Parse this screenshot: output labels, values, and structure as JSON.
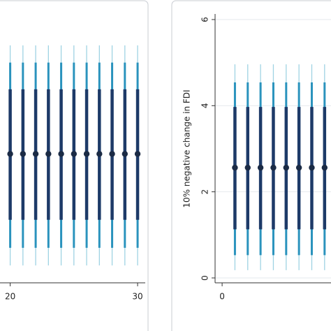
{
  "chart_data": [
    {
      "type": "errorbar",
      "x": [
        20,
        21,
        22,
        23,
        24,
        25,
        26,
        27,
        28,
        29,
        30
      ],
      "values": [
        2.88,
        2.88,
        2.88,
        2.88,
        2.88,
        2.88,
        2.88,
        2.88,
        2.88,
        2.88,
        2.88
      ],
      "point_color": "#1b2b45",
      "intervals": [
        {
          "color": "#9fd3e3",
          "lower": [
            0.29,
            0.29,
            0.29,
            0.29,
            0.29,
            0.29,
            0.29,
            0.29,
            0.29,
            0.29,
            0.29
          ],
          "upper": [
            5.4,
            5.4,
            5.4,
            5.4,
            5.4,
            5.4,
            5.4,
            5.4,
            5.4,
            5.4,
            5.4
          ]
        },
        {
          "color": "#2a93bd",
          "lower": [
            0.7,
            0.7,
            0.7,
            0.7,
            0.7,
            0.7,
            0.7,
            0.7,
            0.7,
            0.7,
            0.7
          ],
          "upper": [
            5.0,
            5.0,
            5.0,
            5.0,
            5.0,
            5.0,
            5.0,
            5.0,
            5.0,
            5.0,
            5.0
          ]
        },
        {
          "color": "#1d3a68",
          "lower": [
            1.35,
            1.35,
            1.35,
            1.35,
            1.35,
            1.35,
            1.35,
            1.35,
            1.35,
            1.35,
            1.35
          ],
          "upper": [
            4.38,
            4.38,
            4.38,
            4.38,
            4.38,
            4.38,
            4.38,
            4.38,
            4.38,
            4.38,
            4.38
          ]
        }
      ],
      "xlim": [
        19.2,
        30.6
      ],
      "xticks": [
        20,
        30
      ],
      "ylim": [
        0,
        6
      ]
    },
    {
      "type": "errorbar",
      "y_label": "10% negative change in FDI",
      "x": [
        1,
        2,
        3,
        4,
        5,
        6,
        7,
        8
      ],
      "values": [
        2.56,
        2.56,
        2.56,
        2.56,
        2.56,
        2.56,
        2.56,
        2.56
      ],
      "point_color": "#1b2b45",
      "intervals": [
        {
          "color": "#9fd3e3",
          "lower": [
            0.18,
            0.18,
            0.18,
            0.18,
            0.18,
            0.18,
            0.18,
            0.18
          ],
          "upper": [
            4.96,
            4.96,
            4.96,
            4.96,
            4.96,
            4.96,
            4.96,
            4.96
          ]
        },
        {
          "color": "#2a93bd",
          "lower": [
            0.53,
            0.53,
            0.53,
            0.53,
            0.53,
            0.53,
            0.53,
            0.53
          ],
          "upper": [
            4.54,
            4.54,
            4.54,
            4.54,
            4.54,
            4.54,
            4.54,
            4.54
          ]
        },
        {
          "color": "#1d3a68",
          "lower": [
            1.13,
            1.13,
            1.13,
            1.13,
            1.13,
            1.13,
            1.13,
            1.13
          ],
          "upper": [
            3.97,
            3.97,
            3.97,
            3.97,
            3.97,
            3.97,
            3.97,
            3.97
          ]
        }
      ],
      "xlim": [
        -0.55,
        8.5
      ],
      "xticks": [
        0
      ],
      "ylim": [
        0,
        6
      ],
      "yticks": [
        0,
        2,
        4,
        6
      ],
      "grid": true
    }
  ]
}
